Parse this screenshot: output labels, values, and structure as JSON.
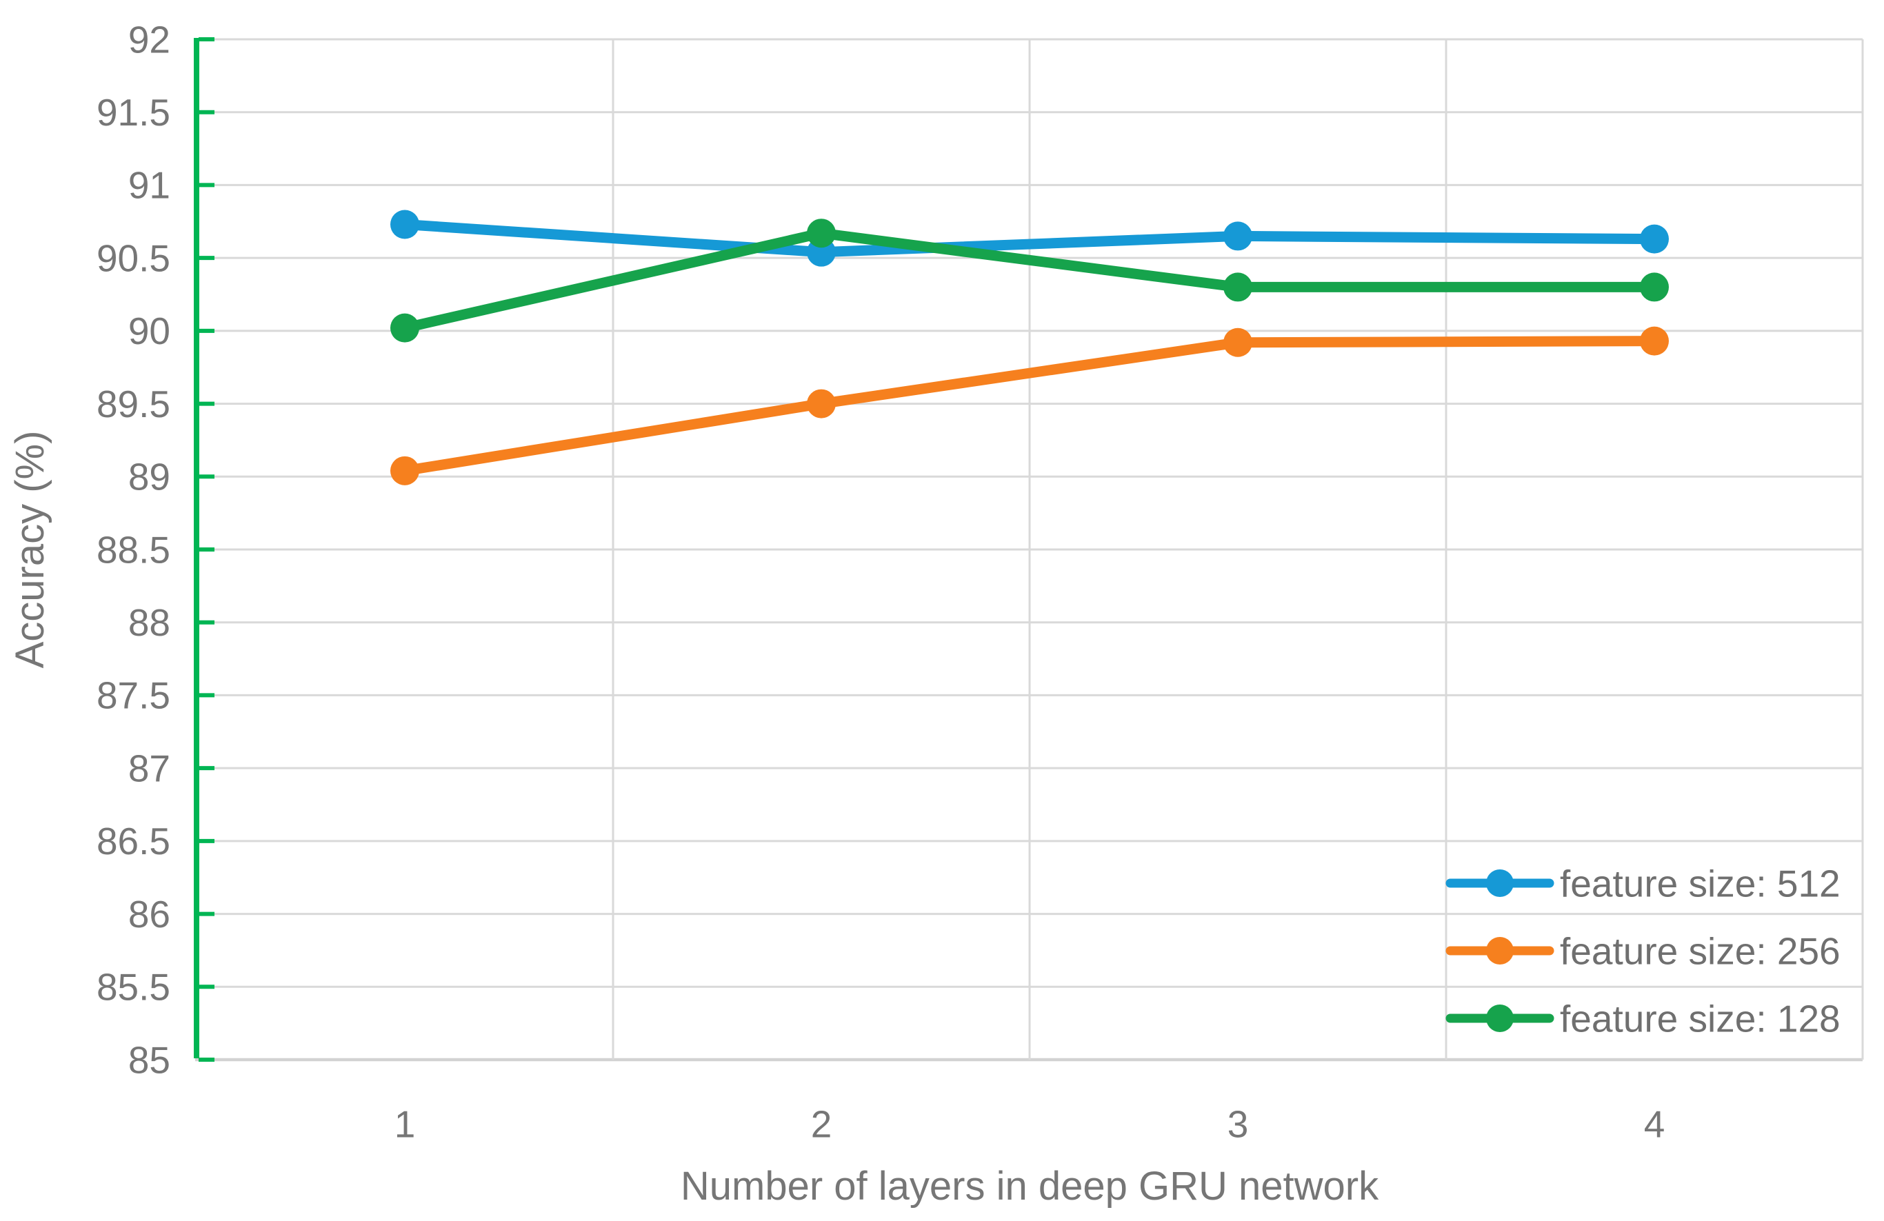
{
  "chart_data": {
    "type": "line",
    "title": "",
    "xlabel": "Number of layers in deep GRU network",
    "ylabel": "Accuracy (%)",
    "categories": [
      "1",
      "2",
      "3",
      "4"
    ],
    "series": [
      {
        "name": "feature size: 512",
        "color": "#1699D6",
        "values": [
          90.73,
          90.54,
          90.65,
          90.63
        ]
      },
      {
        "name": "feature size: 256",
        "color": "#F6801E",
        "values": [
          89.04,
          89.5,
          89.92,
          89.93
        ]
      },
      {
        "name": "feature size: 128",
        "color": "#16A34C",
        "values": [
          90.02,
          90.67,
          90.3,
          90.3
        ]
      }
    ],
    "ylim": [
      85,
      92
    ],
    "ytick_step": 0.5,
    "ytick_labels": [
      "85",
      "85.5",
      "86",
      "86.5",
      "87",
      "87.5",
      "88",
      "88.5",
      "89",
      "89.5",
      "90",
      "90.5",
      "91",
      "91.5",
      "92"
    ],
    "grid": true,
    "legend_position": "inside-bottom-right",
    "colors": {
      "gridline": "#D9D9D9",
      "bottom_axis": "#D2D2D2",
      "y_axis_line": "#00B553",
      "tick_label_text": "#767676",
      "axis_title_text": "#767676",
      "legend_text": "#6F6F6F"
    }
  }
}
